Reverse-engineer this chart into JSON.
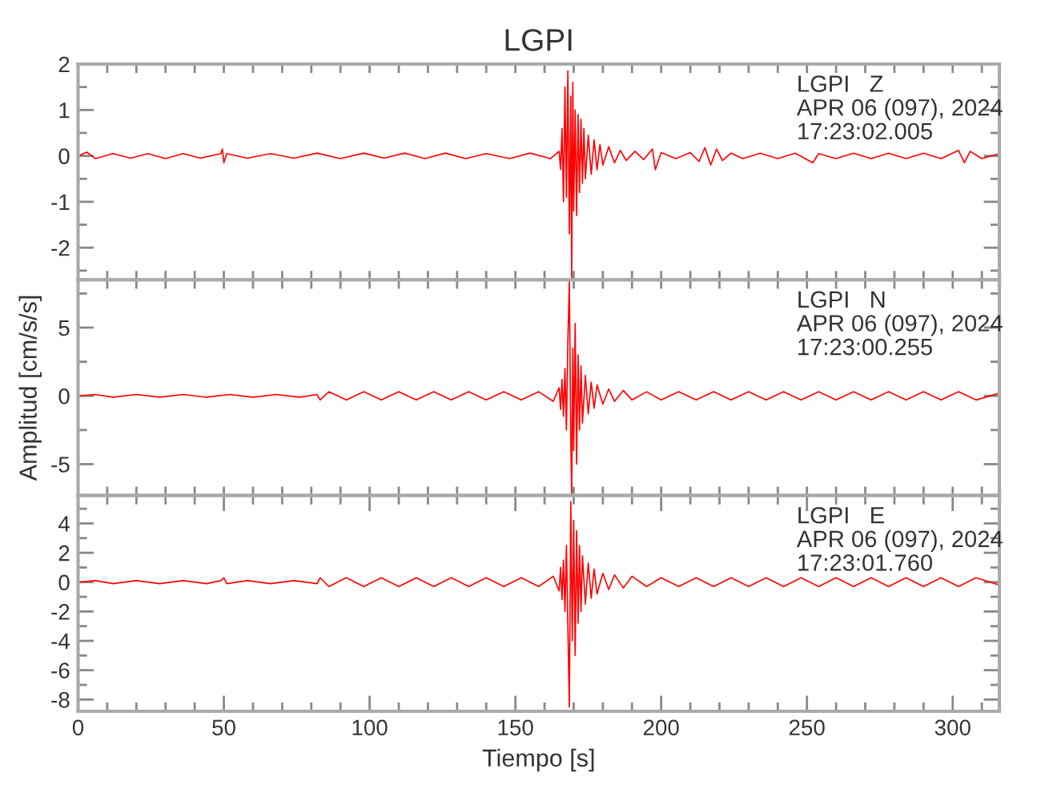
{
  "chart_data": [
    {
      "type": "line",
      "title": "LGPI",
      "tick_labels": "y",
      "grid": false,
      "legend": false,
      "annotations": [
        "LGPI   Z",
        "APR 06 (097), 2024",
        "17:23:02.005"
      ],
      "xlim": [
        0,
        316
      ],
      "xticks": [
        {
          "value": 0,
          "label": null
        },
        {
          "value": 10,
          "label": null
        },
        {
          "value": 20,
          "label": null
        },
        {
          "value": 30,
          "label": null
        },
        {
          "value": 40,
          "label": null
        },
        {
          "value": 50,
          "label": null
        },
        {
          "value": 60,
          "label": null
        },
        {
          "value": 70,
          "label": null
        },
        {
          "value": 80,
          "label": null
        },
        {
          "value": 90,
          "label": null
        },
        {
          "value": 100,
          "label": null
        },
        {
          "value": 110,
          "label": null
        },
        {
          "value": 120,
          "label": null
        },
        {
          "value": 130,
          "label": null
        },
        {
          "value": 140,
          "label": null
        },
        {
          "value": 150,
          "label": null
        },
        {
          "value": 160,
          "label": null
        },
        {
          "value": 170,
          "label": null
        },
        {
          "value": 180,
          "label": null
        },
        {
          "value": 190,
          "label": null
        },
        {
          "value": 200,
          "label": null
        },
        {
          "value": 210,
          "label": null
        },
        {
          "value": 220,
          "label": null
        },
        {
          "value": 230,
          "label": null
        },
        {
          "value": 240,
          "label": null
        },
        {
          "value": 250,
          "label": null
        },
        {
          "value": 260,
          "label": null
        },
        {
          "value": 270,
          "label": null
        },
        {
          "value": 280,
          "label": null
        },
        {
          "value": 290,
          "label": null
        },
        {
          "value": 300,
          "label": null
        },
        {
          "value": 310,
          "label": null
        }
      ],
      "ylim": [
        -2.7,
        2
      ],
      "yticks": [
        {
          "value": -2.5,
          "label": null
        },
        -2,
        {
          "value": -1.5,
          "label": null
        },
        -1,
        {
          "value": -0.5,
          "label": null
        },
        0,
        {
          "value": 0.5,
          "label": null
        },
        1,
        {
          "value": 1.5,
          "label": null
        },
        2
      ],
      "series": [
        {
          "color": "#ff0000",
          "x": [
            0,
            3,
            6,
            12,
            18,
            24,
            30,
            36,
            42,
            49,
            49.5,
            50,
            51,
            58,
            66,
            74,
            82,
            90,
            98,
            105,
            112,
            119,
            126,
            133,
            140,
            148,
            155,
            162,
            165,
            165.5,
            166,
            166.5,
            167,
            167.5,
            168,
            168.5,
            169,
            169.3,
            169.7,
            170,
            170.5,
            171,
            171.5,
            172,
            172.5,
            173,
            173.5,
            174,
            175,
            176,
            177,
            178,
            179,
            180,
            182,
            184,
            186,
            188,
            191,
            194,
            197,
            198,
            200,
            205,
            210,
            213,
            215,
            217,
            219,
            221,
            224,
            228,
            234,
            240,
            246,
            252,
            254,
            260,
            266,
            272,
            278,
            284,
            290,
            296,
            302,
            304,
            306,
            310,
            316
          ],
          "values": [
            0,
            0.08,
            -0.06,
            0.05,
            -0.05,
            0.05,
            -0.06,
            0.05,
            -0.05,
            0.05,
            0.15,
            -0.15,
            0.05,
            -0.05,
            0.05,
            -0.05,
            0.06,
            -0.06,
            0.06,
            -0.05,
            0.06,
            -0.06,
            0.06,
            -0.06,
            0.05,
            -0.06,
            0.06,
            -0.06,
            0.1,
            -0.3,
            0.6,
            -1.0,
            1.5,
            -0.9,
            1.85,
            -1.7,
            1.3,
            -2.7,
            1.6,
            -1.2,
            1.0,
            -1.3,
            0.9,
            -0.8,
            0.8,
            -0.6,
            0.6,
            -0.5,
            0.45,
            -0.4,
            0.35,
            -0.3,
            0.25,
            -0.2,
            0.2,
            -0.15,
            0.12,
            -0.1,
            0.1,
            -0.08,
            0.15,
            -0.3,
            0.07,
            -0.06,
            0.07,
            -0.12,
            0.18,
            -0.2,
            0.15,
            -0.1,
            0.06,
            -0.06,
            0.06,
            -0.06,
            0.06,
            -0.15,
            0.05,
            -0.06,
            0.06,
            -0.06,
            0.06,
            -0.06,
            0.06,
            -0.06,
            0.12,
            -0.15,
            0.1,
            -0.06,
            0.05
          ]
        }
      ]
    },
    {
      "type": "line",
      "ylabel": "Amplitud [cm/s/s]",
      "tick_labels": "y",
      "grid": false,
      "legend": false,
      "annotations": [
        "LGPI   N",
        "APR 06 (097), 2024",
        "17:23:00.255"
      ],
      "xlim": [
        0,
        316
      ],
      "xticks": [
        {
          "value": 0,
          "label": null
        },
        {
          "value": 10,
          "label": null
        },
        {
          "value": 20,
          "label": null
        },
        {
          "value": 30,
          "label": null
        },
        {
          "value": 40,
          "label": null
        },
        {
          "value": 50,
          "label": null
        },
        {
          "value": 60,
          "label": null
        },
        {
          "value": 70,
          "label": null
        },
        {
          "value": 80,
          "label": null
        },
        {
          "value": 90,
          "label": null
        },
        {
          "value": 100,
          "label": null
        },
        {
          "value": 110,
          "label": null
        },
        {
          "value": 120,
          "label": null
        },
        {
          "value": 130,
          "label": null
        },
        {
          "value": 140,
          "label": null
        },
        {
          "value": 150,
          "label": null
        },
        {
          "value": 160,
          "label": null
        },
        {
          "value": 170,
          "label": null
        },
        {
          "value": 180,
          "label": null
        },
        {
          "value": 190,
          "label": null
        },
        {
          "value": 200,
          "label": null
        },
        {
          "value": 210,
          "label": null
        },
        {
          "value": 220,
          "label": null
        },
        {
          "value": 230,
          "label": null
        },
        {
          "value": 240,
          "label": null
        },
        {
          "value": 250,
          "label": null
        },
        {
          "value": 260,
          "label": null
        },
        {
          "value": 270,
          "label": null
        },
        {
          "value": 280,
          "label": null
        },
        {
          "value": 290,
          "label": null
        },
        {
          "value": 300,
          "label": null
        },
        {
          "value": 310,
          "label": null
        }
      ],
      "ylim": [
        -7.3,
        8.5
      ],
      "yticks": [
        -5,
        {
          "value": -2.5,
          "label": null
        },
        0,
        {
          "value": 2.5,
          "label": null
        },
        5,
        {
          "value": 7.5,
          "label": null
        }
      ],
      "series": [
        {
          "color": "#ff0000",
          "x": [
            0,
            6,
            12,
            20,
            28,
            36,
            44,
            52,
            60,
            68,
            76,
            82,
            83,
            86,
            92,
            98,
            104,
            110,
            116,
            122,
            128,
            134,
            140,
            146,
            152,
            158,
            163,
            165,
            165.5,
            166,
            166.5,
            167,
            167.5,
            168,
            168.5,
            169,
            169.3,
            169.7,
            170,
            170.5,
            171,
            171.5,
            172,
            172.5,
            173,
            174,
            175,
            176,
            177,
            178,
            180,
            182,
            184,
            187,
            190,
            195,
            200,
            206,
            212,
            218,
            224,
            230,
            236,
            242,
            248,
            254,
            260,
            266,
            272,
            278,
            284,
            290,
            296,
            302,
            308,
            316
          ],
          "values": [
            0,
            0.1,
            -0.1,
            0.1,
            -0.1,
            0.1,
            -0.1,
            0.1,
            -0.1,
            0.1,
            -0.1,
            0.1,
            -0.3,
            0.3,
            -0.3,
            0.3,
            -0.3,
            0.3,
            -0.3,
            0.3,
            -0.3,
            0.3,
            -0.3,
            0.3,
            -0.3,
            0.3,
            -0.4,
            0.6,
            -1.0,
            1.2,
            -1.5,
            2.0,
            -2.5,
            4.0,
            8.4,
            -3.0,
            -7.2,
            3.5,
            -4.0,
            5.3,
            -5.0,
            3.0,
            -2.5,
            2.2,
            -2.0,
            1.5,
            -1.3,
            1.0,
            -0.9,
            0.8,
            -0.6,
            0.5,
            -0.4,
            0.4,
            -0.3,
            0.3,
            -0.3,
            0.3,
            -0.3,
            0.3,
            -0.3,
            0.3,
            -0.3,
            0.3,
            -0.3,
            0.3,
            -0.3,
            0.3,
            -0.3,
            0.3,
            -0.3,
            0.3,
            -0.3,
            0.3,
            -0.3,
            0.2
          ]
        }
      ]
    },
    {
      "type": "line",
      "xlabel": "Tiempo [s]",
      "grid": false,
      "legend": false,
      "annotations": [
        "LGPI   E",
        "APR 06 (097), 2024",
        "17:23:01.760"
      ],
      "xlim": [
        0,
        316
      ],
      "xticks": [
        0,
        {
          "value": 10,
          "label": null
        },
        {
          "value": 20,
          "label": null
        },
        {
          "value": 30,
          "label": null
        },
        {
          "value": 40,
          "label": null
        },
        50,
        {
          "value": 60,
          "label": null
        },
        {
          "value": 70,
          "label": null
        },
        {
          "value": 80,
          "label": null
        },
        {
          "value": 90,
          "label": null
        },
        100,
        {
          "value": 110,
          "label": null
        },
        {
          "value": 120,
          "label": null
        },
        {
          "value": 130,
          "label": null
        },
        {
          "value": 140,
          "label": null
        },
        150,
        {
          "value": 160,
          "label": null
        },
        {
          "value": 170,
          "label": null
        },
        {
          "value": 180,
          "label": null
        },
        {
          "value": 190,
          "label": null
        },
        200,
        {
          "value": 210,
          "label": null
        },
        {
          "value": 220,
          "label": null
        },
        {
          "value": 230,
          "label": null
        },
        {
          "value": 240,
          "label": null
        },
        250,
        {
          "value": 260,
          "label": null
        },
        {
          "value": 270,
          "label": null
        },
        {
          "value": 280,
          "label": null
        },
        {
          "value": 290,
          "label": null
        },
        300,
        {
          "value": 310,
          "label": null
        }
      ],
      "ylim": [
        -8.8,
        5.9
      ],
      "yticks": [
        -8,
        {
          "value": -7,
          "label": null
        },
        -6,
        {
          "value": -5,
          "label": null
        },
        -4,
        {
          "value": -3,
          "label": null
        },
        -2,
        {
          "value": -1,
          "label": null
        },
        0,
        {
          "value": 1,
          "label": null
        },
        2,
        {
          "value": 3,
          "label": null
        },
        4,
        {
          "value": 5,
          "label": null
        }
      ],
      "series": [
        {
          "color": "#ff0000",
          "x": [
            0,
            6,
            12,
            20,
            28,
            36,
            44,
            49,
            50,
            51,
            58,
            66,
            74,
            82,
            83,
            86,
            92,
            98,
            104,
            110,
            116,
            122,
            128,
            134,
            140,
            146,
            152,
            158,
            163,
            165,
            165.5,
            166,
            166.5,
            167,
            167.5,
            168,
            168.5,
            169,
            169.5,
            170,
            170.5,
            171,
            171.5,
            172,
            172.5,
            173,
            174,
            175,
            176,
            177,
            178,
            180,
            182,
            184,
            187,
            190,
            195,
            200,
            206,
            212,
            218,
            224,
            230,
            236,
            242,
            248,
            254,
            260,
            266,
            272,
            278,
            284,
            290,
            296,
            302,
            308,
            316
          ],
          "values": [
            0,
            0.1,
            -0.1,
            0.1,
            -0.1,
            0.1,
            -0.1,
            0.1,
            0.3,
            -0.1,
            0.1,
            -0.1,
            0.1,
            -0.1,
            0.3,
            -0.3,
            0.3,
            -0.3,
            0.3,
            -0.3,
            0.3,
            -0.3,
            0.3,
            -0.3,
            0.3,
            -0.3,
            0.3,
            -0.3,
            0.4,
            -0.6,
            1.0,
            -1.2,
            1.5,
            -2.0,
            2.5,
            -3.0,
            -8.5,
            5.5,
            -4.0,
            4.2,
            -5.0,
            3.5,
            -2.8,
            2.5,
            -2.0,
            1.8,
            -1.5,
            1.3,
            -1.1,
            0.9,
            -0.8,
            0.6,
            -0.5,
            0.5,
            -0.4,
            0.4,
            -0.3,
            0.3,
            -0.3,
            0.3,
            -0.3,
            0.3,
            -0.3,
            0.3,
            -0.3,
            0.3,
            -0.3,
            0.3,
            -0.3,
            0.3,
            -0.3,
            0.3,
            -0.3,
            0.3,
            -0.3,
            0.3,
            -0.2
          ]
        }
      ]
    }
  ]
}
